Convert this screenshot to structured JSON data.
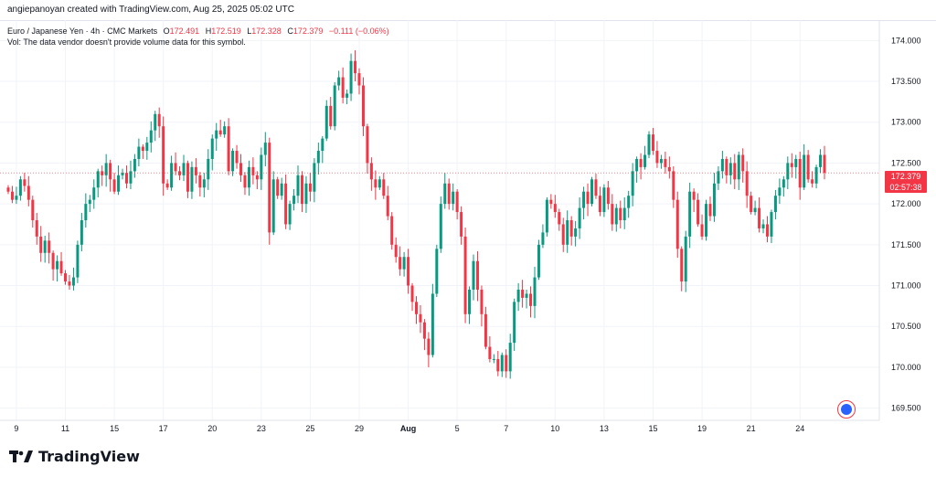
{
  "header": {
    "credit": "angiepanoyan created with TradingView.com, Aug 25, 2025 05:02 UTC"
  },
  "legend": {
    "symbol": "Euro / Japanese Yen · 4h · CMC Markets",
    "o_label": "O",
    "o_value": "172.491",
    "h_label": "H",
    "h_value": "172.519",
    "l_label": "L",
    "l_value": "172.328",
    "c_label": "C",
    "c_value": "172.379",
    "change": "−0.111 (−0.06%)",
    "vol_note": "Vol: The data vendor doesn't provide volume data for this symbol."
  },
  "price_badge": {
    "price": "172.379",
    "countdown": "02:57:38"
  },
  "footer": {
    "brand": "TradingView"
  },
  "colors": {
    "up": "#089981",
    "down": "#f23645",
    "grid": "#f0f3fa",
    "axis_text": "#131722"
  },
  "chart_data": {
    "type": "candlestick",
    "title": "",
    "xlabel": "",
    "ylabel": "",
    "ylim": [
      169.35,
      174.25
    ],
    "y_ticks": [
      "174.000",
      "173.500",
      "173.000",
      "172.500",
      "172.000",
      "171.500",
      "171.000",
      "170.500",
      "170.000",
      "169.500"
    ],
    "y_tick_values": [
      174.0,
      173.5,
      173.0,
      172.5,
      172.0,
      171.5,
      171.0,
      170.5,
      170.0,
      169.5
    ],
    "x_ticks": [
      "9",
      "11",
      "15",
      "17",
      "20",
      "23",
      "25",
      "29",
      "Aug",
      "5",
      "7",
      "10",
      "13",
      "15",
      "19",
      "21",
      "24"
    ],
    "x_tick_index": [
      2,
      14,
      26,
      38,
      50,
      62,
      74,
      86,
      98,
      110,
      122,
      134,
      146,
      158,
      170,
      182,
      194
    ],
    "last_price": 172.379,
    "closes": [
      172.15,
      172.05,
      172.1,
      172.3,
      172.22,
      172.05,
      171.8,
      171.6,
      171.4,
      171.55,
      171.4,
      171.2,
      171.3,
      171.15,
      171.05,
      171.0,
      171.1,
      171.5,
      171.8,
      172.0,
      172.05,
      172.2,
      172.4,
      172.35,
      172.5,
      172.3,
      172.15,
      172.35,
      172.38,
      172.25,
      172.4,
      172.55,
      172.7,
      172.65,
      172.75,
      172.9,
      173.1,
      172.95,
      172.25,
      172.2,
      172.5,
      172.4,
      172.35,
      172.5,
      172.15,
      172.45,
      172.35,
      172.2,
      172.3,
      172.55,
      172.8,
      172.9,
      172.85,
      172.95,
      172.4,
      172.65,
      172.5,
      172.35,
      172.2,
      172.45,
      172.35,
      172.3,
      172.6,
      172.75,
      171.65,
      172.3,
      172.1,
      172.25,
      171.75,
      172.0,
      172.1,
      172.35,
      172.0,
      172.25,
      172.15,
      172.5,
      172.65,
      172.8,
      173.2,
      172.95,
      173.45,
      173.55,
      173.3,
      173.35,
      173.75,
      173.6,
      173.45,
      172.95,
      172.5,
      172.3,
      172.2,
      172.3,
      172.1,
      171.85,
      171.5,
      171.35,
      171.2,
      171.35,
      171.0,
      170.8,
      170.65,
      170.55,
      170.35,
      170.15,
      170.9,
      171.45,
      172.0,
      172.25,
      172.0,
      172.15,
      171.9,
      171.6,
      170.65,
      170.95,
      171.3,
      170.95,
      170.65,
      170.25,
      170.1,
      170.1,
      169.95,
      170.15,
      169.95,
      170.3,
      170.8,
      170.95,
      170.85,
      170.9,
      170.75,
      171.1,
      171.5,
      171.65,
      172.05,
      172.0,
      171.9,
      171.75,
      171.5,
      171.8,
      171.6,
      171.7,
      171.95,
      172.15,
      172.0,
      172.3,
      172.1,
      171.9,
      172.2,
      172.0,
      171.75,
      171.95,
      171.8,
      171.95,
      172.1,
      172.4,
      172.55,
      172.45,
      172.6,
      172.85,
      172.65,
      172.5,
      172.55,
      172.45,
      172.4,
      172.05,
      171.45,
      171.05,
      171.6,
      172.15,
      172.05,
      171.75,
      171.6,
      172.0,
      171.85,
      172.25,
      172.4,
      172.55,
      172.35,
      172.5,
      172.3,
      172.6,
      172.4,
      172.1,
      171.9,
      171.95,
      171.7,
      171.75,
      171.6,
      171.9,
      172.1,
      172.2,
      172.3,
      172.5,
      172.45,
      172.55,
      172.2,
      172.6,
      172.3,
      172.25,
      172.45,
      172.6,
      172.38
    ]
  }
}
